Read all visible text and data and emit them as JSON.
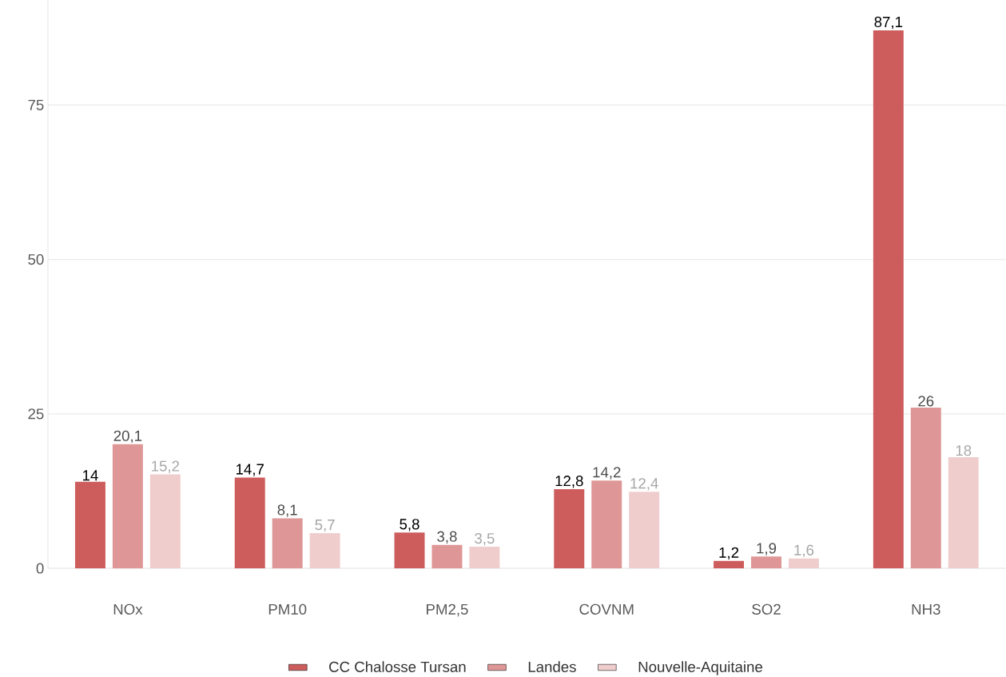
{
  "chart_data": {
    "type": "bar",
    "categories": [
      "NOx",
      "PM10",
      "PM2,5",
      "COVNM",
      "SO2",
      "NH3"
    ],
    "series": [
      {
        "name": "CC Chalosse Tursan",
        "color": "#cd5c5c",
        "values": [
          14,
          14.7,
          5.8,
          12.8,
          1.2,
          87.1
        ],
        "value_labels": [
          "14",
          "14,7",
          "5,8",
          "12,8",
          "1,2",
          "87,1"
        ]
      },
      {
        "name": "Landes",
        "color": "#de9696",
        "values": [
          20.1,
          8.1,
          3.8,
          14.2,
          1.9,
          26
        ],
        "value_labels": [
          "20,1",
          "8,1",
          "3,8",
          "14,2",
          "1,9",
          "26"
        ]
      },
      {
        "name": "Nouvelle-Aquitaine",
        "color": "#f0cdcd",
        "values": [
          15.2,
          5.7,
          3.5,
          12.4,
          1.6,
          18
        ],
        "value_labels": [
          "15,2",
          "5,7",
          "3,5",
          "12,4",
          "1,6",
          "18"
        ]
      }
    ],
    "ylim": [
      0,
      92
    ],
    "yticks": [
      0,
      25,
      50,
      75
    ],
    "grid": "y",
    "legend": "bottom"
  }
}
